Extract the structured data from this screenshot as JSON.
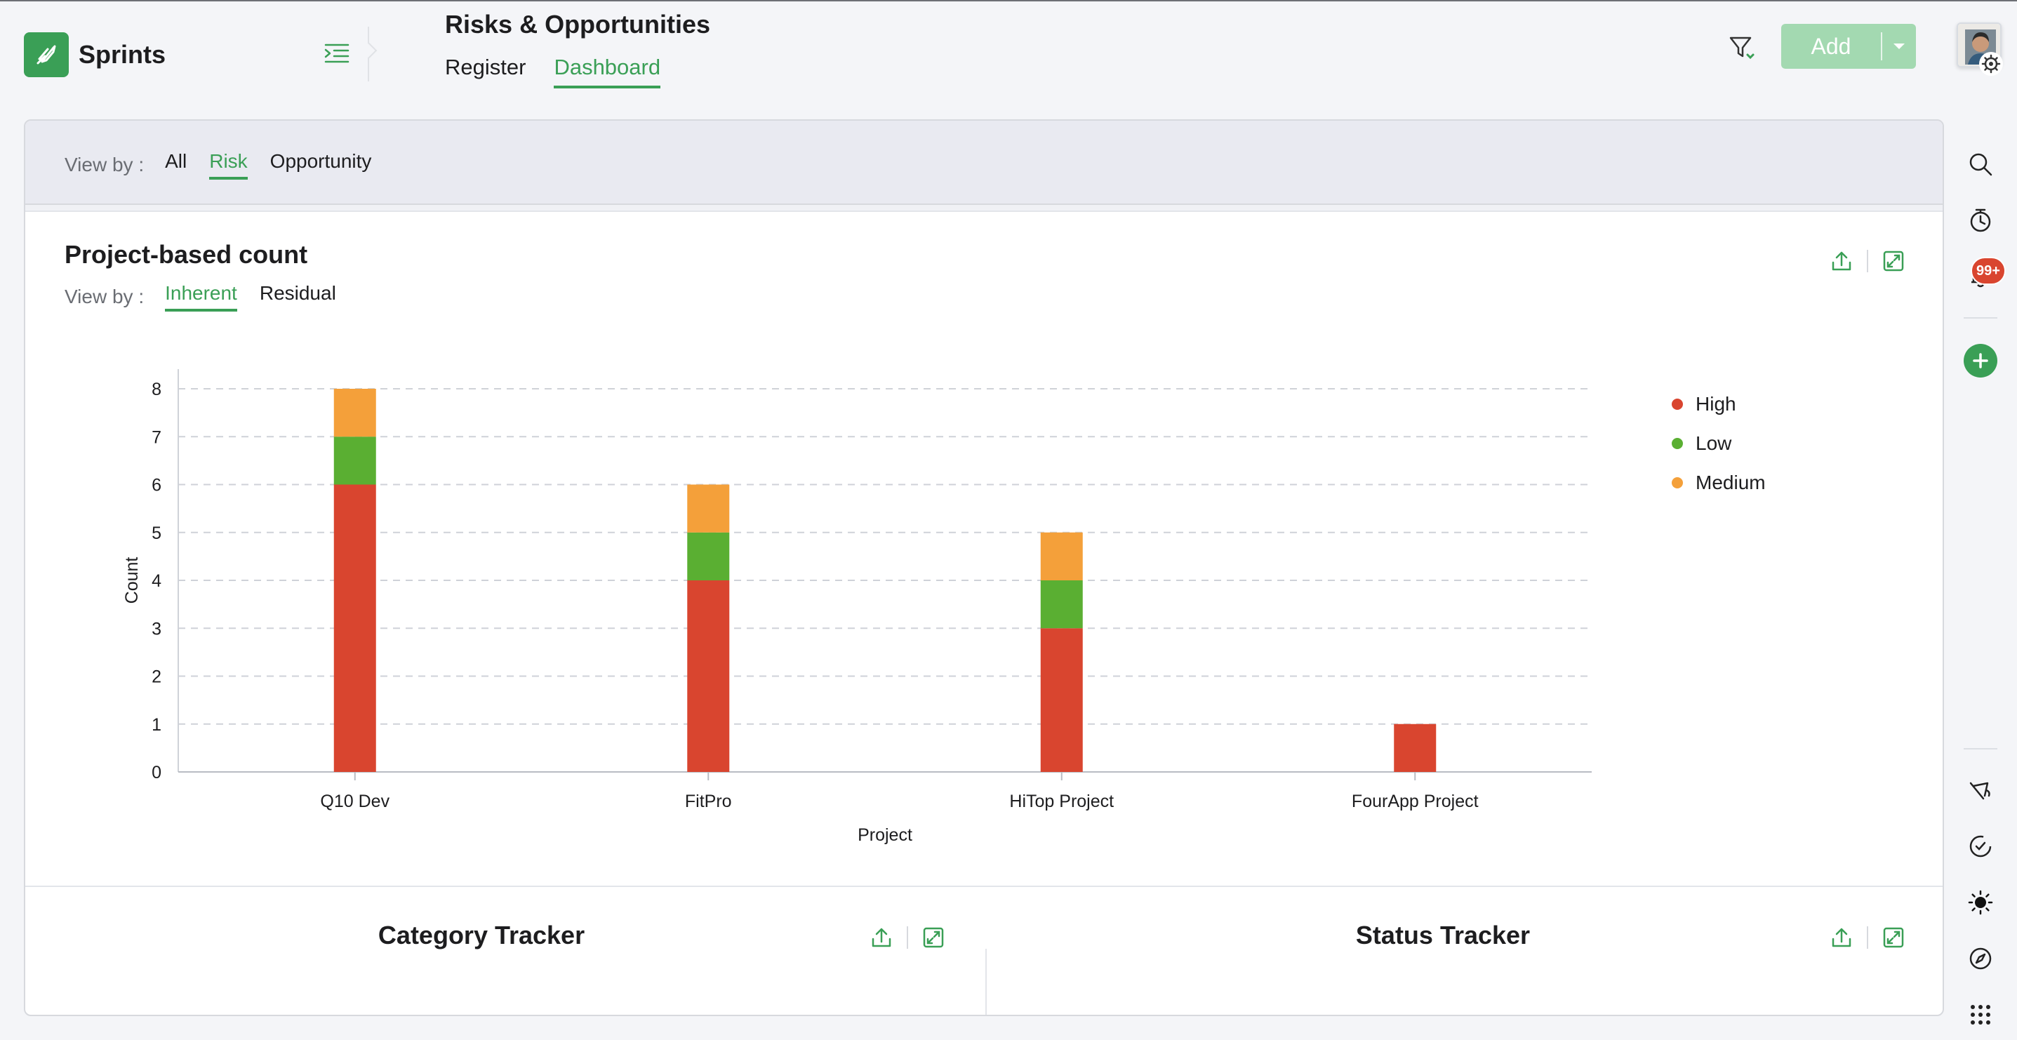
{
  "app": {
    "name": "Sprints"
  },
  "header": {
    "title": "Risks & Opportunities",
    "tabs": [
      {
        "label": "Register",
        "active": false
      },
      {
        "label": "Dashboard",
        "active": true
      }
    ],
    "add_label": "Add"
  },
  "rail": {
    "notification_count": "99+"
  },
  "view_by": {
    "label": "View by :",
    "tabs": [
      {
        "label": "All",
        "active": false
      },
      {
        "label": "Risk",
        "active": true
      },
      {
        "label": "Opportunity",
        "active": false
      }
    ]
  },
  "project_card": {
    "title": "Project-based count",
    "view_by_label": "View by :",
    "tabs": [
      {
        "label": "Inherent",
        "active": true
      },
      {
        "label": "Residual",
        "active": false
      }
    ]
  },
  "chart_data": {
    "type": "bar",
    "stacked": true,
    "title": "Project-based count",
    "xlabel": "Project",
    "ylabel": "Count",
    "ylim": [
      0,
      8
    ],
    "yticks": [
      0,
      1,
      2,
      3,
      4,
      5,
      6,
      7,
      8
    ],
    "grid": true,
    "legend_position": "right",
    "categories": [
      "Q10 Dev",
      "FitPro",
      "HiTop Project",
      "FourApp Project"
    ],
    "series": [
      {
        "name": "High",
        "color": "#d9452f",
        "values": [
          6,
          4,
          3,
          1
        ]
      },
      {
        "name": "Low",
        "color": "#5aaf32",
        "values": [
          1,
          1,
          1,
          0
        ]
      },
      {
        "name": "Medium",
        "color": "#f4a03a",
        "values": [
          1,
          1,
          1,
          0
        ]
      }
    ]
  },
  "bottom_cards": {
    "category_title": "Category Tracker",
    "status_title": "Status Tracker"
  },
  "colors": {
    "accent": "#3a9f56",
    "add_button": "#a3d9b1",
    "badge": "#d9452f"
  }
}
